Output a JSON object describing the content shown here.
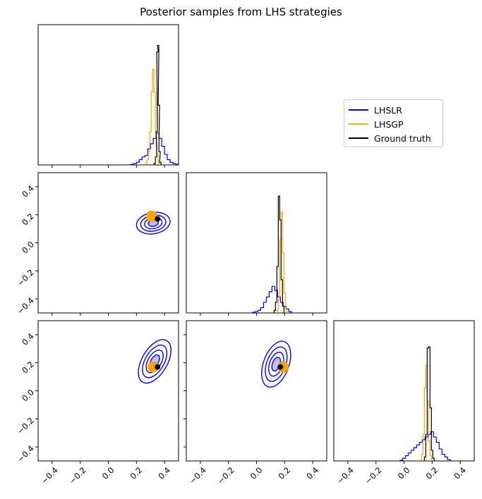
{
  "title": "Posterior samples from LHS strategies",
  "legend": [
    {
      "name": "LHSLR",
      "color": "#0000ff"
    },
    {
      "name": "LHSGP",
      "color": "#ffa500"
    },
    {
      "name": "Ground truth",
      "color": "#000000"
    }
  ],
  "chart_data": {
    "type": "corner",
    "title": "Posterior samples from LHS strategies",
    "range": [
      -0.5,
      0.5
    ],
    "ticks": [
      -0.4,
      -0.2,
      0.0,
      0.2,
      0.4
    ],
    "tick_labels": [
      "−0.4",
      "−0.2",
      "0.0",
      "0.2",
      "0.4"
    ],
    "grid": false,
    "legend_placement": "upper right (outside)",
    "series": [
      "LHSLR",
      "LHSGP",
      "Ground truth"
    ],
    "marginals": [
      {
        "param": 0,
        "LHSLR": [
          [
            0.17,
            0.005
          ],
          [
            0.19,
            0.01
          ],
          [
            0.21,
            0.02
          ],
          [
            0.23,
            0.04
          ],
          [
            0.25,
            0.06
          ],
          [
            0.27,
            0.07
          ],
          [
            0.29,
            0.12
          ],
          [
            0.31,
            0.16
          ],
          [
            0.33,
            0.2
          ],
          [
            0.35,
            0.24
          ],
          [
            0.37,
            0.2
          ],
          [
            0.39,
            0.14
          ],
          [
            0.41,
            0.08
          ],
          [
            0.43,
            0.04
          ],
          [
            0.45,
            0.02
          ],
          [
            0.47,
            0.01
          ],
          [
            0.49,
            0.005
          ]
        ],
        "LHSGP": [
          [
            0.27,
            0.01
          ],
          [
            0.28,
            0.04
          ],
          [
            0.29,
            0.1
          ],
          [
            0.3,
            0.25
          ],
          [
            0.31,
            0.55
          ],
          [
            0.32,
            0.72
          ],
          [
            0.33,
            0.55
          ],
          [
            0.34,
            0.25
          ],
          [
            0.35,
            0.08
          ],
          [
            0.36,
            0.02
          ]
        ],
        "truth": [
          [
            0.33,
            0.01
          ],
          [
            0.34,
            0.06
          ],
          [
            0.345,
            0.25
          ],
          [
            0.35,
            0.85
          ],
          [
            0.355,
            0.9
          ],
          [
            0.36,
            0.45
          ],
          [
            0.365,
            0.1
          ],
          [
            0.37,
            0.02
          ]
        ]
      },
      {
        "param": 1,
        "LHSLR": [
          [
            -0.02,
            0.005
          ],
          [
            0.0,
            0.01
          ],
          [
            0.02,
            0.02
          ],
          [
            0.04,
            0.04
          ],
          [
            0.06,
            0.08
          ],
          [
            0.08,
            0.12
          ],
          [
            0.1,
            0.16
          ],
          [
            0.12,
            0.2
          ],
          [
            0.14,
            0.17
          ],
          [
            0.16,
            0.12
          ],
          [
            0.18,
            0.08
          ],
          [
            0.2,
            0.05
          ],
          [
            0.22,
            0.03
          ],
          [
            0.24,
            0.01
          ]
        ],
        "LHSGP": [
          [
            0.15,
            0.02
          ],
          [
            0.16,
            0.1
          ],
          [
            0.17,
            0.55
          ],
          [
            0.18,
            0.76
          ],
          [
            0.19,
            0.45
          ],
          [
            0.2,
            0.15
          ],
          [
            0.21,
            0.04
          ]
        ],
        "truth": [
          [
            0.13,
            0.02
          ],
          [
            0.14,
            0.08
          ],
          [
            0.15,
            0.35
          ],
          [
            0.16,
            0.88
          ],
          [
            0.17,
            0.7
          ],
          [
            0.18,
            0.25
          ],
          [
            0.19,
            0.05
          ]
        ]
      },
      {
        "param": 2,
        "LHSLR": [
          [
            -0.02,
            0.005
          ],
          [
            0.0,
            0.02
          ],
          [
            0.02,
            0.04
          ],
          [
            0.04,
            0.06
          ],
          [
            0.06,
            0.08
          ],
          [
            0.08,
            0.1
          ],
          [
            0.1,
            0.12
          ],
          [
            0.12,
            0.14
          ],
          [
            0.14,
            0.16
          ],
          [
            0.16,
            0.18
          ],
          [
            0.18,
            0.2
          ],
          [
            0.2,
            0.22
          ],
          [
            0.22,
            0.18
          ],
          [
            0.24,
            0.14
          ],
          [
            0.26,
            0.09
          ],
          [
            0.28,
            0.05
          ],
          [
            0.3,
            0.03
          ],
          [
            0.32,
            0.01
          ]
        ],
        "LHSGP": [
          [
            0.13,
            0.05
          ],
          [
            0.14,
            0.2
          ],
          [
            0.15,
            0.55
          ],
          [
            0.16,
            0.72
          ],
          [
            0.17,
            0.45
          ],
          [
            0.18,
            0.15
          ],
          [
            0.19,
            0.04
          ]
        ],
        "truth": [
          [
            0.15,
            0.03
          ],
          [
            0.16,
            0.2
          ],
          [
            0.17,
            0.85
          ],
          [
            0.18,
            0.86
          ],
          [
            0.19,
            0.4
          ],
          [
            0.2,
            0.08
          ],
          [
            0.21,
            0.02
          ]
        ]
      }
    ],
    "pairs": [
      {
        "x": 0,
        "y": 1,
        "LHSLR_center": [
          0.32,
          0.14
        ],
        "LHSGP_point": [
          0.31,
          0.19
        ],
        "truth_point": [
          0.35,
          0.17
        ]
      },
      {
        "x": 0,
        "y": 2,
        "LHSLR_center": [
          0.33,
          0.21
        ],
        "LHSGP_point": [
          0.32,
          0.17
        ],
        "truth_point": [
          0.35,
          0.17
        ]
      },
      {
        "x": 1,
        "y": 2,
        "LHSLR_center": [
          0.14,
          0.19
        ],
        "LHSGP_point": [
          0.19,
          0.17
        ],
        "truth_point": [
          0.17,
          0.17
        ]
      }
    ]
  }
}
